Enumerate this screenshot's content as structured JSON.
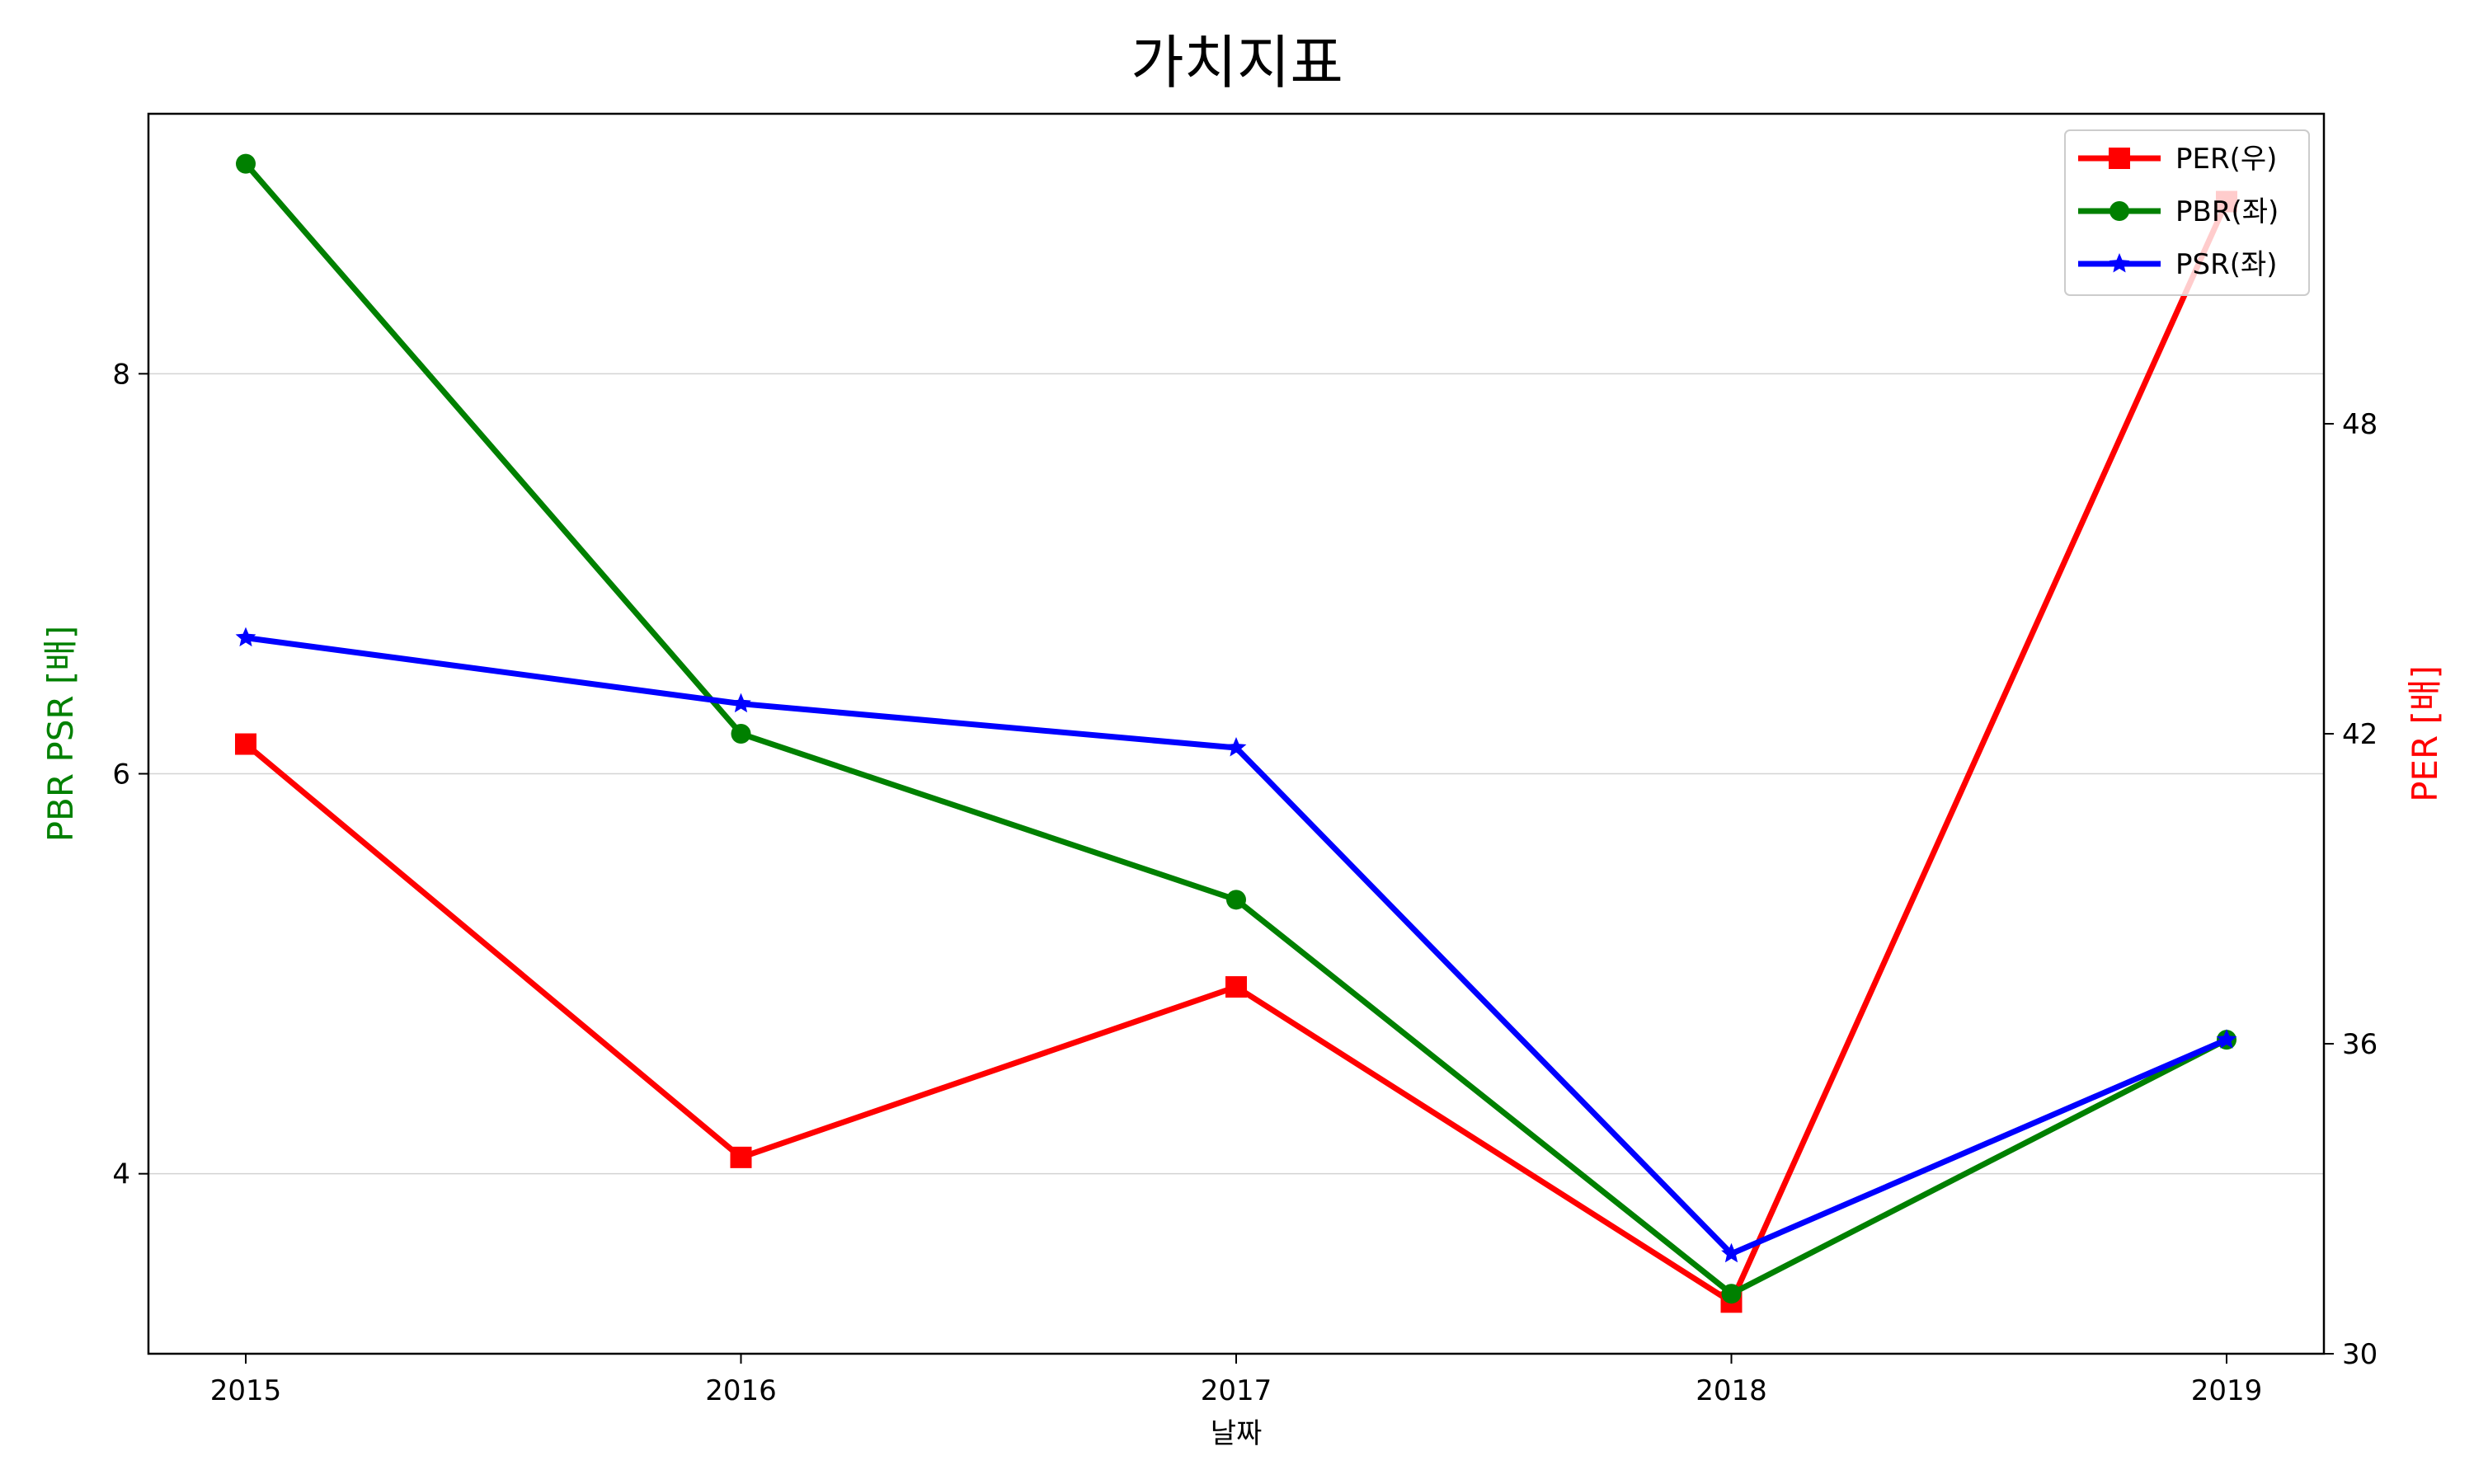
{
  "chart_data": {
    "type": "line",
    "title": "가치지표",
    "xlabel": "날짜",
    "categories": [
      "2015",
      "2016",
      "2017",
      "2018",
      "2019"
    ],
    "left_axis": {
      "label": "PBR PSR [배]",
      "label_color": "#008000",
      "ylim": [
        3.1,
        9.3
      ],
      "ticks": [
        4,
        6,
        8
      ]
    },
    "right_axis": {
      "label": "PER [배]",
      "label_color": "#ff0000",
      "ylim": [
        30,
        54
      ],
      "ticks": [
        30,
        36,
        42,
        48
      ]
    },
    "series": [
      {
        "name": "PER(우)",
        "axis": "right",
        "color": "#ff0000",
        "marker": "square",
        "values": [
          41.8,
          33.8,
          37.1,
          31.0,
          52.3
        ]
      },
      {
        "name": "PBR(좌)",
        "axis": "left",
        "color": "#008000",
        "marker": "circle",
        "values": [
          9.05,
          6.2,
          5.37,
          3.4,
          4.67
        ]
      },
      {
        "name": "PSR(좌)",
        "axis": "left",
        "color": "#0000ff",
        "marker": "star",
        "values": [
          6.68,
          6.35,
          6.13,
          3.6,
          4.67
        ]
      }
    ],
    "grid": "horizontal-left-axis",
    "legend_position": "top-right"
  }
}
